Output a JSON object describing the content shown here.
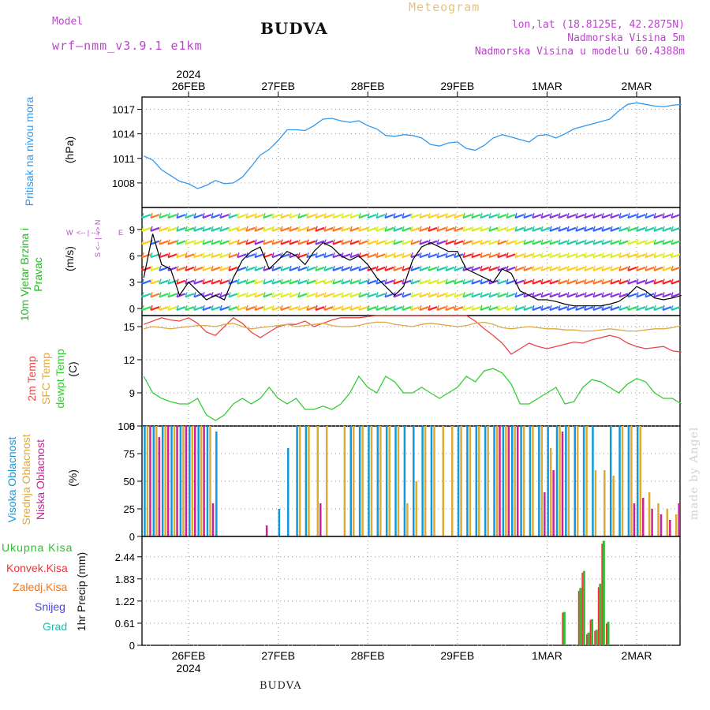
{
  "header": {
    "model_label": "Model",
    "model_name": "wrf—nmm_v3.9.1 e1km",
    "title": "BUDVA",
    "meteogram": "Meteogram",
    "lonlat": "lon,lat (18.8125E, 42.2875N)",
    "elevation": "Nadmorska Visina 5m",
    "elevation_model": "Nadmorska Visina u modelu 60.4388m"
  },
  "time_axis": {
    "year": "2024",
    "days": [
      "26FEB",
      "27FEB",
      "28FEB",
      "29FEB",
      "1MAR",
      "2MAR"
    ]
  },
  "footer": {
    "station": "BUDVA",
    "credit": "made by Angel"
  },
  "colors": {
    "pressure": "#3399ee",
    "temp2m": "#ee4444",
    "sfc": "#ddaa44",
    "dewpt": "#33cc33",
    "cloud_high": "#1199dd",
    "cloud_mid": "#ddaa33",
    "cloud_low": "#cc2299",
    "precip_total": "#33bb33",
    "precip_conv": "#ee3333",
    "precip_frozen": "#ee7722",
    "snow": "#4444ee",
    "grad": "#22bbaa",
    "wind_legend": "#bb44cc"
  },
  "chart_data": [
    {
      "type": "line",
      "name": "pressure",
      "ylabel": "Pritisak na nivou mora",
      "unit": "(hPa)",
      "yticks": [
        "1008",
        "1011",
        "1014",
        "1017"
      ],
      "ylim": [
        1005,
        1018.5
      ],
      "x": [
        0,
        0.1,
        0.2,
        0.3,
        0.4,
        0.5,
        0.6,
        0.7,
        0.8,
        0.9,
        1.0,
        1.1,
        1.2,
        1.3,
        1.4,
        1.5,
        1.6,
        1.7,
        1.8,
        1.9,
        2.0,
        2.1,
        2.2,
        2.3,
        2.4,
        2.5,
        2.6,
        2.7,
        2.8,
        2.9,
        3.0,
        3.1,
        3.2,
        3.3,
        3.4,
        3.5,
        3.6,
        3.7,
        3.8,
        3.9,
        4.0,
        4.1,
        4.2,
        4.3,
        4.4,
        4.5,
        4.6,
        4.7,
        4.8,
        4.9,
        5.0,
        5.1,
        5.2,
        5.3,
        5.4,
        5.5,
        5.6,
        5.7,
        5.8,
        5.9,
        6.0
      ],
      "values": [
        1011.3,
        1010.8,
        1009.6,
        1008.9,
        1008.2,
        1007.9,
        1007.3,
        1007.7,
        1008.3,
        1007.9,
        1008.0,
        1008.7,
        1010.0,
        1011.4,
        1012.1,
        1013.2,
        1014.5,
        1014.5,
        1014.4,
        1015.0,
        1015.8,
        1015.9,
        1015.6,
        1015.4,
        1015.6,
        1015.0,
        1014.6,
        1013.8,
        1013.7,
        1013.9,
        1013.8,
        1013.5,
        1012.7,
        1012.5,
        1012.9,
        1013.0,
        1012.2,
        1012.0,
        1012.6,
        1013.5,
        1013.9,
        1013.6,
        1013.3,
        1013.0,
        1013.8,
        1013.9,
        1013.5,
        1014.0,
        1014.6,
        1014.9,
        1015.2,
        1015.5,
        1015.8,
        1016.8,
        1017.6,
        1017.8,
        1017.6,
        1017.4,
        1017.3,
        1017.5,
        1017.6
      ]
    },
    {
      "type": "line",
      "name": "wind",
      "ylabel": "10m Vjetar Brzina i Pravac",
      "unit": "(m/s)",
      "legend_labels": [
        "W",
        "<-- | -->",
        "E",
        "S <-- | --> N"
      ],
      "yticks": [
        "0",
        "3",
        "6",
        "9"
      ],
      "ylim": [
        -0.8,
        11.5
      ],
      "x": [
        0,
        0.1,
        0.2,
        0.3,
        0.4,
        0.5,
        0.6,
        0.7,
        0.8,
        0.9,
        1.0,
        1.1,
        1.2,
        1.3,
        1.4,
        1.5,
        1.6,
        1.7,
        1.8,
        1.9,
        2.0,
        2.1,
        2.2,
        2.3,
        2.4,
        2.5,
        2.6,
        2.7,
        2.8,
        2.9,
        3.0,
        3.1,
        3.2,
        3.3,
        3.4,
        3.5,
        3.6,
        3.7,
        3.8,
        3.9,
        4.0,
        4.1,
        4.2,
        4.3,
        4.4,
        4.5,
        4.6,
        4.7,
        4.8,
        4.9,
        5.0,
        5.1,
        5.2,
        5.3,
        5.4,
        5.5,
        5.6,
        5.7,
        5.8,
        5.9,
        6.0
      ],
      "values": [
        3.5,
        8.5,
        5.0,
        4.5,
        1.5,
        3.0,
        2.0,
        1.0,
        1.5,
        1.0,
        3.5,
        5.5,
        6.5,
        7.0,
        4.5,
        5.5,
        6.5,
        6.0,
        5.0,
        6.5,
        7.5,
        7.0,
        6.0,
        5.5,
        6.0,
        5.0,
        3.5,
        2.5,
        1.5,
        2.5,
        5.5,
        7.0,
        7.5,
        7.0,
        6.5,
        6.5,
        4.5,
        4.0,
        3.5,
        3.0,
        4.5,
        4.0,
        2.0,
        1.5,
        1.0,
        1.0,
        0.8,
        0.5,
        0.3,
        0.3,
        0.3,
        0.3,
        0.5,
        0.8,
        1.5,
        2.5,
        2.0,
        1.2,
        1.0,
        1.2,
        1.5
      ]
    },
    {
      "type": "line",
      "name": "temperature",
      "ylabels": [
        "2m Temp",
        "SFC Temp",
        "dewpt Temp"
      ],
      "unit": "(C)",
      "yticks": [
        "6",
        "9",
        "12",
        "15"
      ],
      "ylim": [
        6,
        16
      ],
      "x": [
        0,
        0.1,
        0.2,
        0.3,
        0.4,
        0.5,
        0.6,
        0.7,
        0.8,
        0.9,
        1.0,
        1.1,
        1.2,
        1.3,
        1.4,
        1.5,
        1.6,
        1.7,
        1.8,
        1.9,
        2.0,
        2.1,
        2.2,
        2.3,
        2.4,
        2.5,
        2.6,
        2.7,
        2.8,
        2.9,
        3.0,
        3.1,
        3.2,
        3.3,
        3.4,
        3.5,
        3.6,
        3.7,
        3.8,
        3.9,
        4.0,
        4.1,
        4.2,
        4.3,
        4.4,
        4.5,
        4.6,
        4.7,
        4.8,
        4.9,
        5.0,
        5.1,
        5.2,
        5.3,
        5.4,
        5.5,
        5.6,
        5.7,
        5.8,
        5.9,
        6.0
      ],
      "series": [
        {
          "name": "2m Temp",
          "values": [
            15.2,
            15.5,
            15.8,
            15.6,
            15.5,
            15.8,
            15.3,
            14.5,
            14.2,
            15.0,
            15.8,
            15.3,
            14.5,
            14.0,
            14.5,
            15.0,
            15.2,
            15.2,
            15.5,
            15.0,
            15.3,
            15.6,
            15.8,
            15.8,
            15.8,
            15.9,
            16.0,
            16.0,
            16.0,
            16.0,
            16.0,
            16.0,
            16.0,
            16.0,
            16.0,
            16.0,
            16.0,
            15.5,
            14.8,
            14.2,
            13.5,
            12.5,
            13.0,
            13.5,
            13.2,
            13.0,
            13.2,
            13.4,
            13.6,
            13.5,
            13.8,
            14.0,
            14.2,
            14.0,
            13.5,
            13.2,
            13.0,
            13.1,
            13.2,
            12.8,
            12.7
          ]
        },
        {
          "name": "SFC Temp",
          "values": [
            14.8,
            15.0,
            14.9,
            14.8,
            14.9,
            15.0,
            15.1,
            15.1,
            15.0,
            15.2,
            15.3,
            15.0,
            14.8,
            14.9,
            15.0,
            15.1,
            15.2,
            15.0,
            15.1,
            15.2,
            15.3,
            15.1,
            15.0,
            15.0,
            15.1,
            15.3,
            15.4,
            15.4,
            15.2,
            15.1,
            15.0,
            15.2,
            15.3,
            15.2,
            15.1,
            15.0,
            15.1,
            15.3,
            15.4,
            15.2,
            14.9,
            14.8,
            14.9,
            15.0,
            14.9,
            14.8,
            14.8,
            14.7,
            14.7,
            14.6,
            14.6,
            14.7,
            14.8,
            14.7,
            14.6,
            14.6,
            14.7,
            14.8,
            14.8,
            14.9,
            15.1
          ]
        },
        {
          "name": "dewpt Temp",
          "values": [
            10.5,
            9.0,
            8.5,
            8.2,
            8.0,
            8.0,
            8.5,
            7.0,
            6.5,
            7.0,
            8.0,
            8.5,
            8.0,
            8.5,
            9.5,
            8.5,
            8.0,
            8.5,
            7.5,
            7.5,
            7.8,
            7.5,
            8.0,
            9.0,
            10.5,
            9.5,
            9.0,
            10.5,
            10.0,
            9.0,
            9.0,
            9.5,
            9.0,
            8.5,
            9.0,
            9.5,
            10.5,
            10.0,
            11.0,
            11.2,
            10.8,
            9.8,
            8.0,
            8.0,
            8.5,
            9.0,
            9.5,
            8.0,
            8.2,
            9.5,
            10.2,
            10.0,
            9.5,
            9.0,
            9.8,
            10.3,
            10.0,
            9.0,
            8.5,
            8.5,
            8.0
          ]
        }
      ]
    },
    {
      "type": "bar",
      "name": "clouds",
      "ylabels": [
        "Visoka Oblacnost",
        "Srednja Oblacnost",
        "Niska Oblacnost"
      ],
      "unit": "(%)",
      "yticks": [
        "0",
        "25",
        "50",
        "75",
        "100"
      ],
      "ylim": [
        0,
        100
      ],
      "x": [
        0,
        0.1,
        0.2,
        0.3,
        0.4,
        0.5,
        0.6,
        0.7,
        0.8,
        0.9,
        1.0,
        1.1,
        1.2,
        1.3,
        1.4,
        1.5,
        1.6,
        1.7,
        1.8,
        1.9,
        2.0,
        2.1,
        2.2,
        2.3,
        2.4,
        2.5,
        2.6,
        2.7,
        2.8,
        2.9,
        3.0,
        3.1,
        3.2,
        3.3,
        3.4,
        3.5,
        3.6,
        3.7,
        3.8,
        3.9,
        4.0,
        4.1,
        4.2,
        4.3,
        4.4,
        4.5,
        4.6,
        4.7,
        4.8,
        4.9,
        5.0,
        5.1,
        5.2,
        5.3,
        5.4,
        5.5,
        5.6,
        5.7,
        5.8,
        5.9,
        6.0
      ],
      "series": [
        {
          "name": "Visoka Oblacnost",
          "values": [
            100,
            100,
            100,
            100,
            100,
            100,
            100,
            100,
            95,
            0,
            0,
            0,
            0,
            0,
            0,
            25,
            80,
            100,
            100,
            0,
            0,
            0,
            0,
            100,
            100,
            100,
            100,
            100,
            100,
            100,
            100,
            100,
            100,
            0,
            0,
            100,
            100,
            100,
            100,
            100,
            100,
            100,
            100,
            100,
            100,
            100,
            100,
            100,
            100,
            100,
            100,
            0,
            100,
            100,
            100,
            100,
            0,
            0,
            0,
            0,
            0
          ]
        },
        {
          "name": "Srednja Oblacnost",
          "values": [
            100,
            100,
            100,
            100,
            100,
            100,
            100,
            100,
            0,
            0,
            0,
            0,
            0,
            0,
            0,
            0,
            0,
            100,
            100,
            100,
            100,
            0,
            100,
            100,
            100,
            100,
            100,
            100,
            100,
            30,
            50,
            100,
            100,
            100,
            100,
            100,
            100,
            100,
            100,
            100,
            100,
            100,
            100,
            100,
            100,
            80,
            100,
            100,
            100,
            100,
            60,
            60,
            55,
            100,
            100,
            100,
            40,
            30,
            25,
            20,
            0
          ]
        },
        {
          "name": "Niska Oblacnost",
          "values": [
            100,
            90,
            100,
            100,
            100,
            100,
            100,
            30,
            0,
            0,
            0,
            0,
            0,
            10,
            0,
            0,
            0,
            0,
            0,
            30,
            0,
            0,
            0,
            0,
            0,
            0,
            0,
            0,
            0,
            0,
            0,
            0,
            0,
            0,
            0,
            0,
            0,
            0,
            0,
            100,
            100,
            100,
            0,
            0,
            40,
            60,
            95,
            0,
            0,
            0,
            0,
            0,
            0,
            0,
            30,
            35,
            25,
            20,
            15,
            30,
            20
          ]
        }
      ]
    },
    {
      "type": "bar",
      "name": "precipitation",
      "ylabels": [
        "Ukupna Kisa",
        "Konvek.Kisa",
        "Zaledj.Kisa",
        "Snijeg",
        "Grad"
      ],
      "unit": "1hr Precip (mm)",
      "yticks": [
        "0",
        "0.61",
        "1.22",
        "1.83",
        "2.44"
      ],
      "ylim": [
        0,
        3.0
      ],
      "bars": [
        {
          "x": 4.68,
          "total": 0.92,
          "conv": 0.9
        },
        {
          "x": 4.86,
          "total": 1.58,
          "conv": 1.5
        },
        {
          "x": 4.9,
          "total": 2.05,
          "conv": 2.0
        },
        {
          "x": 4.95,
          "total": 0.35,
          "conv": 0.3
        },
        {
          "x": 4.99,
          "total": 0.72,
          "conv": 0.7
        },
        {
          "x": 5.04,
          "total": 0.43,
          "conv": 0.4
        },
        {
          "x": 5.08,
          "total": 1.7,
          "conv": 1.6
        },
        {
          "x": 5.12,
          "total": 2.88,
          "conv": 2.8
        },
        {
          "x": 5.17,
          "total": 0.65,
          "conv": 0.6
        }
      ]
    }
  ]
}
